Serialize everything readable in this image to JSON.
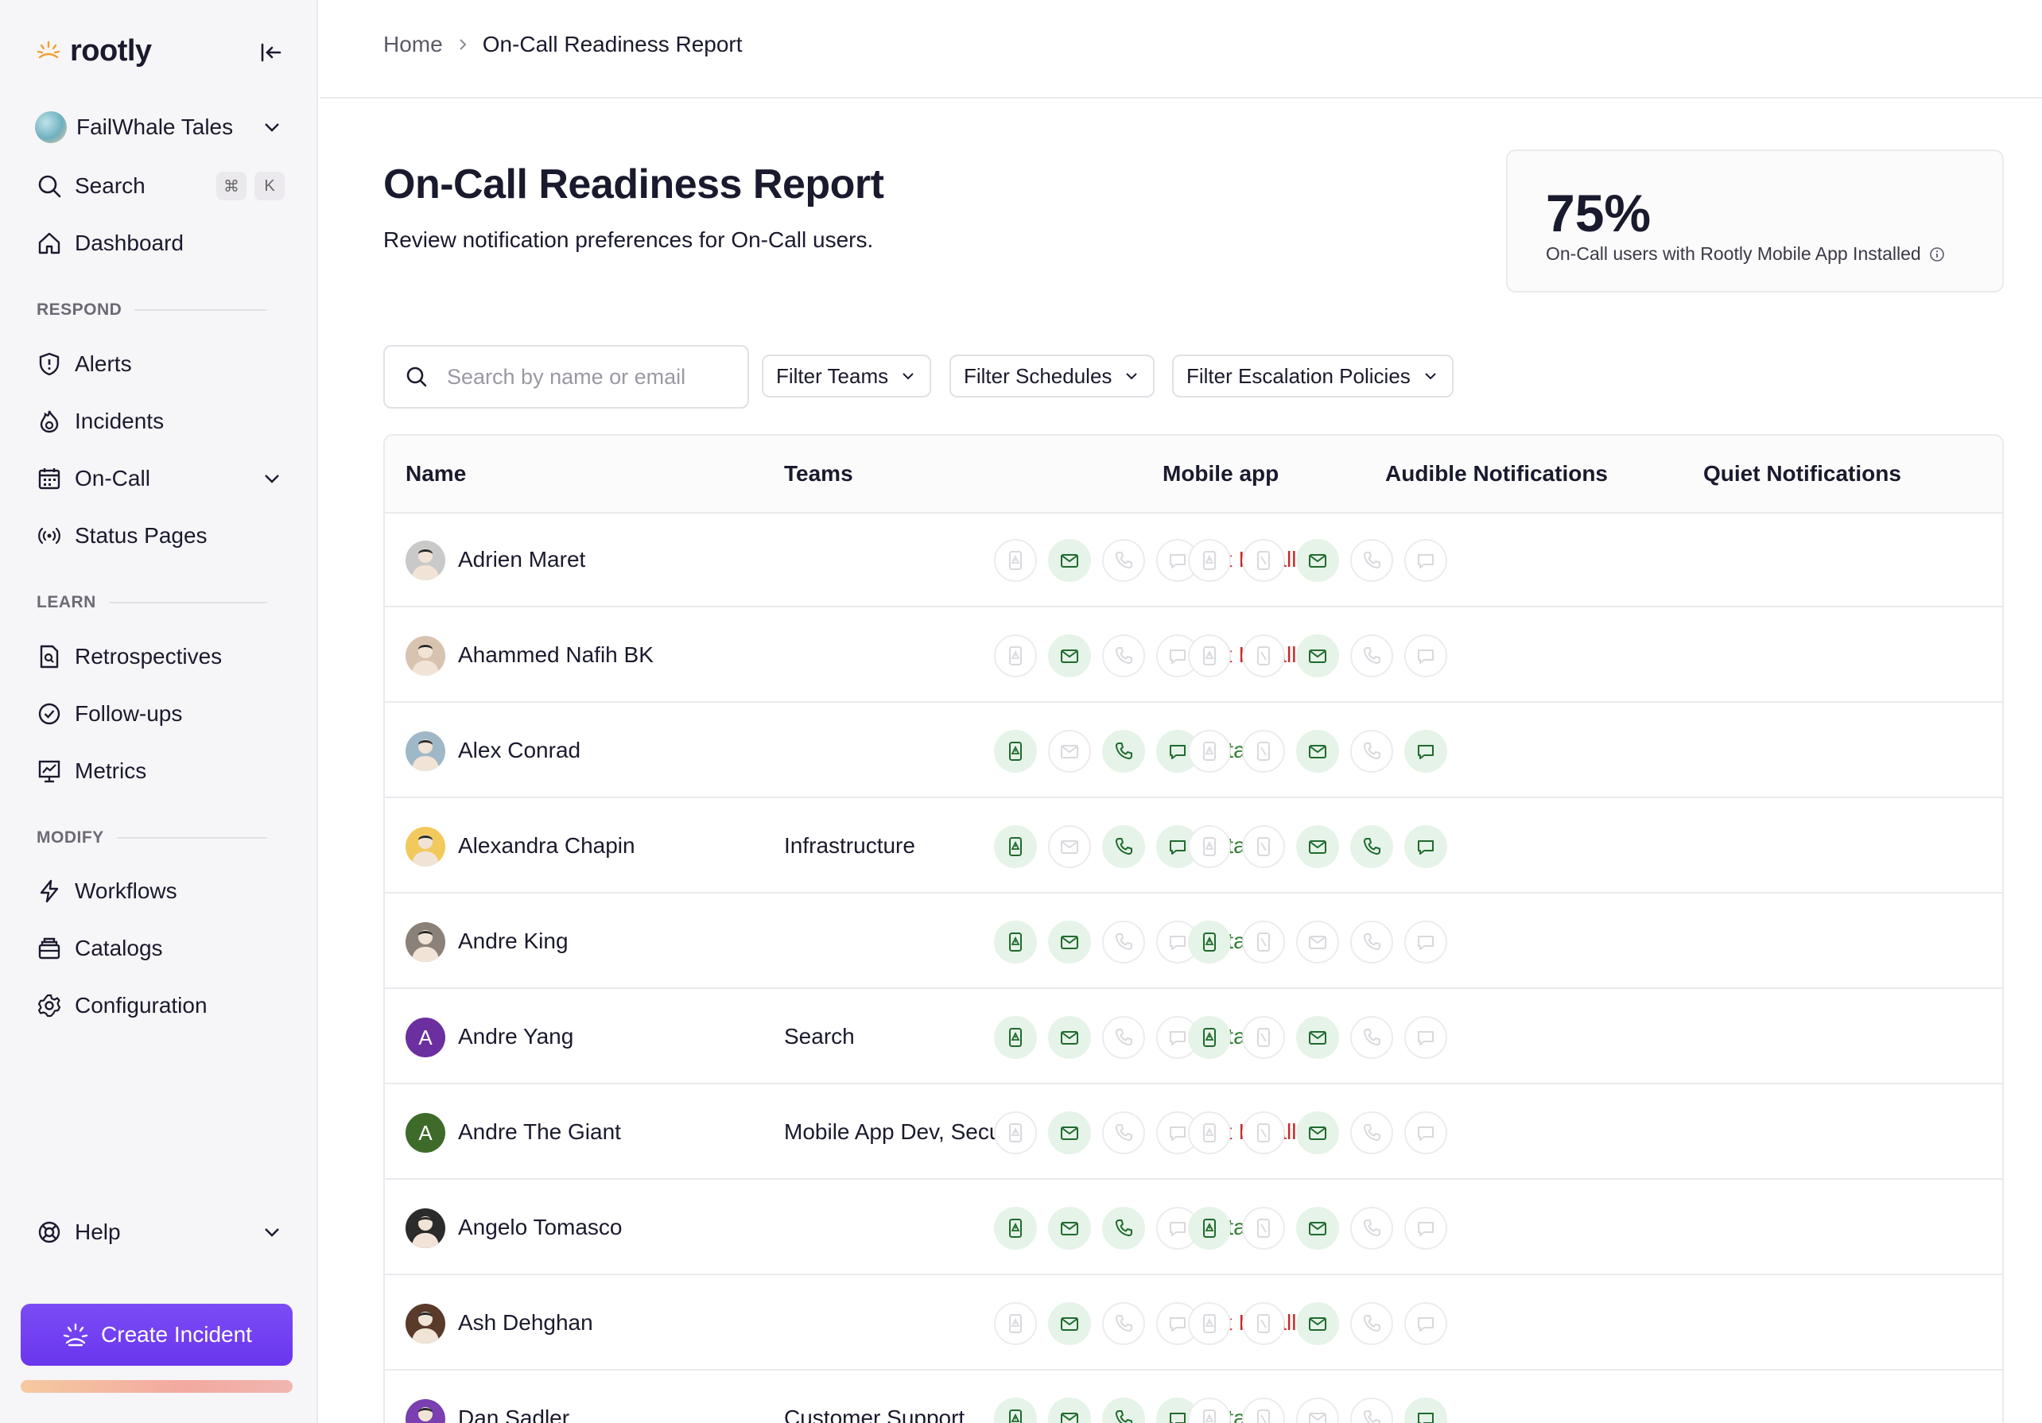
{
  "brand": {
    "name": "rootly"
  },
  "sidebar": {
    "org": "FailWhale Tales",
    "search_label": "Search",
    "shortcut": [
      "⌘",
      "K"
    ],
    "dashboard": "Dashboard",
    "sections": {
      "respond": "RESPOND",
      "learn": "LEARN",
      "modify": "MODIFY"
    },
    "respond_items": [
      "Alerts",
      "Incidents",
      "On-Call",
      "Status Pages"
    ],
    "learn_items": [
      "Retrospectives",
      "Follow-ups",
      "Metrics"
    ],
    "modify_items": [
      "Workflows",
      "Catalogs",
      "Configuration"
    ],
    "help": "Help",
    "create_incident": "Create Incident"
  },
  "breadcrumb": {
    "home": "Home",
    "current": "On-Call Readiness Report"
  },
  "page": {
    "title": "On-Call Readiness Report",
    "subtitle": "Review notification preferences for On-Call users."
  },
  "stat": {
    "value": "75%",
    "label": "On-Call users with Rootly Mobile App Installed"
  },
  "filters": {
    "search_placeholder": "Search by name or email",
    "teams": "Filter Teams",
    "schedules": "Filter Schedules",
    "escalation": "Filter Escalation Policies"
  },
  "table": {
    "headers": [
      "Name",
      "Teams",
      "Mobile app",
      "Audible Notifications",
      "Quiet Notifications"
    ],
    "audible_channels": [
      "mobile-push-icon",
      "email-icon",
      "phone-icon",
      "sms-icon"
    ],
    "quiet_channels": [
      "mobile-push-icon",
      "mobile-push-silent-icon",
      "email-icon",
      "phone-icon",
      "sms-icon"
    ],
    "rows": [
      {
        "name": "Adrien Maret",
        "teams": "",
        "status": "Not Installed",
        "audible": [
          0,
          1,
          0,
          0
        ],
        "quiet": [
          0,
          0,
          1,
          0,
          0
        ]
      },
      {
        "name": "Ahammed Nafih BK",
        "teams": "",
        "status": "Not Installed",
        "audible": [
          0,
          1,
          0,
          0
        ],
        "quiet": [
          0,
          0,
          1,
          0,
          0
        ]
      },
      {
        "name": "Alex Conrad",
        "teams": "",
        "status": "Installed",
        "audible": [
          1,
          0,
          1,
          1
        ],
        "quiet": [
          0,
          0,
          1,
          0,
          1
        ]
      },
      {
        "name": "Alexandra Chapin",
        "teams": "Infrastructure",
        "status": "Installed",
        "audible": [
          1,
          0,
          1,
          1
        ],
        "quiet": [
          0,
          0,
          1,
          1,
          1
        ]
      },
      {
        "name": "Andre King",
        "teams": "",
        "status": "Installed",
        "audible": [
          1,
          1,
          0,
          0
        ],
        "quiet": [
          1,
          0,
          0,
          0,
          0
        ]
      },
      {
        "name": "Andre Yang",
        "teams": "Search",
        "status": "Installed",
        "audible": [
          1,
          1,
          0,
          0
        ],
        "quiet": [
          1,
          0,
          1,
          0,
          0
        ]
      },
      {
        "name": "Andre The Giant",
        "teams": "Mobile App Dev, Security",
        "status": "Not Installed",
        "audible": [
          0,
          1,
          0,
          0
        ],
        "quiet": [
          0,
          0,
          1,
          0,
          0
        ]
      },
      {
        "name": "Angelo Tomasco",
        "teams": "",
        "status": "Installed",
        "audible": [
          1,
          1,
          1,
          0
        ],
        "quiet": [
          1,
          0,
          1,
          0,
          0
        ]
      },
      {
        "name": "Ash Dehghan",
        "teams": "",
        "status": "Not Installed",
        "audible": [
          0,
          1,
          0,
          0
        ],
        "quiet": [
          0,
          0,
          1,
          0,
          0
        ]
      },
      {
        "name": "Dan Sadler",
        "teams": "Customer Support",
        "status": "Installed",
        "audible": [
          1,
          1,
          1,
          1
        ],
        "quiet": [
          0,
          0,
          0,
          0,
          1
        ]
      }
    ],
    "avatars": [
      {
        "type": "photo",
        "color": "#c9c9c9",
        "initial": ""
      },
      {
        "type": "photo",
        "color": "#d8c3b0",
        "initial": ""
      },
      {
        "type": "photo",
        "color": "#9fb8c8",
        "initial": ""
      },
      {
        "type": "photo",
        "color": "#f2c95c",
        "initial": ""
      },
      {
        "type": "photo",
        "color": "#8a8178",
        "initial": ""
      },
      {
        "type": "letter",
        "color": "#6b2fa0",
        "initial": "A"
      },
      {
        "type": "letter",
        "color": "#3f6b2a",
        "initial": "A"
      },
      {
        "type": "photo",
        "color": "#2b2b2b",
        "initial": ""
      },
      {
        "type": "photo",
        "color": "#5a3a2a",
        "initial": ""
      },
      {
        "type": "photo",
        "color": "#7a3fb0",
        "initial": ""
      }
    ]
  },
  "colors": {
    "accent": "#6a36ee",
    "installed": "#2e7d32",
    "not_installed": "#c62828",
    "icon_on": "#1f6b2e",
    "icon_off": "#d9d9de"
  }
}
